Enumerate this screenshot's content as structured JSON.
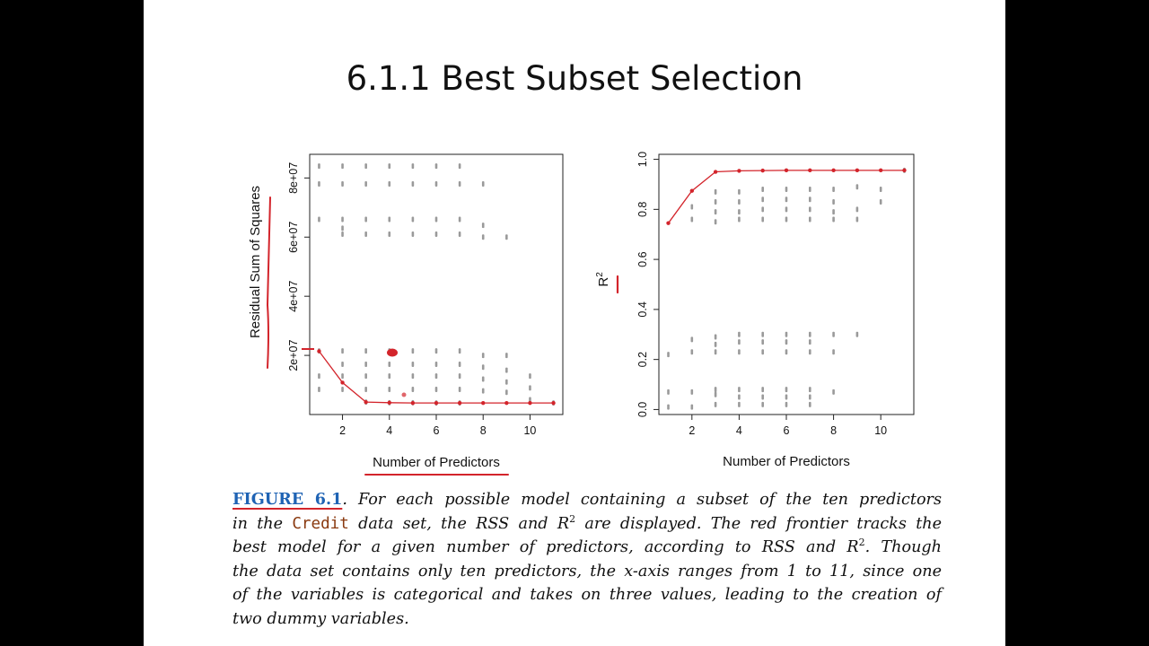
{
  "slide": {
    "title": "6.1.1 Best Subset Selection"
  },
  "colors": {
    "frontier": "#d3242b",
    "points": "#9a9a9a",
    "figure_label": "#1f63b4",
    "code_word": "#8a3a10"
  },
  "caption": {
    "figure_label": "FIGURE 6.1",
    "line1_rest": ". For each possible model containing a subset of the ten predictors",
    "line2_a": "in the ",
    "line2_code": "Credit",
    "line2_b": " data set, the RSS and R",
    "line2_sup": "2",
    "line2_c": " are displayed. The red frontier tracks the",
    "line3_a": "best model for a given number of predictors, according to RSS and R",
    "line3_sup": "2",
    "line3_b": ". Though",
    "line4": "the data set contains only ten predictors, the x-axis ranges from 1 to 11, since one",
    "line5": "of the variables is categorical and takes on three values, leading to the creation of",
    "line6": "two dummy variables."
  },
  "chart_data": [
    {
      "type": "scatter",
      "title": "",
      "xlabel": "Number of Predictors",
      "ylabel": "Residual Sum of Squares",
      "xlim": [
        0.6,
        11.4
      ],
      "ylim": [
        0,
        88000000
      ],
      "x_ticks": [
        2,
        4,
        6,
        8,
        10
      ],
      "x_tick_labels": [
        "2",
        "4",
        "6",
        "8",
        "10"
      ],
      "y_ticks": [
        20000000,
        40000000,
        60000000,
        80000000
      ],
      "y_tick_labels": [
        "2e+07",
        "4e+07",
        "6e+07",
        "8e+07"
      ],
      "grid": false,
      "frontier": {
        "x": [
          1,
          2,
          3,
          4,
          5,
          6,
          7,
          8,
          9,
          10,
          11
        ],
        "y": [
          21400000,
          10800000,
          4200000,
          4000000,
          3900000,
          3900000,
          3900000,
          3900000,
          3900000,
          3900000,
          3900000
        ]
      },
      "point_columns": [
        {
          "x": 1,
          "y": [
            84000000,
            78000000,
            66000000,
            21500000,
            13000000,
            8500000
          ]
        },
        {
          "x": 2,
          "y": [
            84000000,
            78000000,
            66000000,
            63000000,
            61000000,
            21500000,
            17000000,
            13000000,
            8500000
          ]
        },
        {
          "x": 3,
          "y": [
            84000000,
            78000000,
            66000000,
            61000000,
            21500000,
            17000000,
            13000000,
            8500000,
            4200000
          ]
        },
        {
          "x": 4,
          "y": [
            84000000,
            78000000,
            66000000,
            61000000,
            21500000,
            17000000,
            13000000,
            8500000,
            4000000
          ]
        },
        {
          "x": 5,
          "y": [
            84000000,
            78000000,
            66000000,
            61000000,
            21500000,
            17000000,
            13000000,
            8500000,
            4000000
          ]
        },
        {
          "x": 6,
          "y": [
            84000000,
            78000000,
            66000000,
            61000000,
            21500000,
            17000000,
            13000000,
            8500000,
            3900000
          ]
        },
        {
          "x": 7,
          "y": [
            84000000,
            78000000,
            66000000,
            61000000,
            21500000,
            17000000,
            13000000,
            8500000,
            3900000
          ]
        },
        {
          "x": 8,
          "y": [
            78000000,
            64000000,
            60000000,
            20000000,
            16000000,
            12000000,
            8000000
          ]
        },
        {
          "x": 9,
          "y": [
            60000000,
            20000000,
            15000000,
            11000000,
            7500000
          ]
        },
        {
          "x": 10,
          "y": [
            13000000,
            9000000,
            5000000
          ]
        },
        {
          "x": 11,
          "y": [
            3900000
          ]
        }
      ]
    },
    {
      "type": "scatter",
      "title": "",
      "xlabel": "Number of Predictors",
      "ylabel": "R2",
      "xlim": [
        0.6,
        11.4
      ],
      "ylim": [
        -0.02,
        1.02
      ],
      "x_ticks": [
        2,
        4,
        6,
        8,
        10
      ],
      "x_tick_labels": [
        "2",
        "4",
        "6",
        "8",
        "10"
      ],
      "y_ticks": [
        0.0,
        0.2,
        0.4,
        0.6,
        0.8,
        1.0
      ],
      "y_tick_labels": [
        "0.0",
        "0.2",
        "0.4",
        "0.6",
        "0.8",
        "1.0"
      ],
      "grid": false,
      "frontier": {
        "x": [
          1,
          2,
          3,
          4,
          5,
          6,
          7,
          8,
          9,
          10,
          11
        ],
        "y": [
          0.745,
          0.874,
          0.95,
          0.954,
          0.955,
          0.956,
          0.956,
          0.956,
          0.956,
          0.956,
          0.956
        ]
      },
      "point_columns": [
        {
          "x": 1,
          "y": [
            0.22,
            0.07,
            0.01
          ]
        },
        {
          "x": 2,
          "y": [
            0.81,
            0.76,
            0.28,
            0.23,
            0.07,
            0.01
          ]
        },
        {
          "x": 3,
          "y": [
            0.87,
            0.83,
            0.79,
            0.75,
            0.29,
            0.26,
            0.23,
            0.08,
            0.06,
            0.02
          ]
        },
        {
          "x": 4,
          "y": [
            0.87,
            0.83,
            0.79,
            0.76,
            0.3,
            0.27,
            0.23,
            0.08,
            0.05,
            0.02
          ]
        },
        {
          "x": 5,
          "y": [
            0.88,
            0.84,
            0.8,
            0.76,
            0.3,
            0.27,
            0.23,
            0.08,
            0.05,
            0.02
          ]
        },
        {
          "x": 6,
          "y": [
            0.88,
            0.84,
            0.8,
            0.76,
            0.3,
            0.27,
            0.23,
            0.08,
            0.05,
            0.02
          ]
        },
        {
          "x": 7,
          "y": [
            0.88,
            0.84,
            0.8,
            0.76,
            0.3,
            0.27,
            0.23,
            0.08,
            0.05,
            0.02
          ]
        },
        {
          "x": 8,
          "y": [
            0.88,
            0.83,
            0.79,
            0.76,
            0.3,
            0.23,
            0.07
          ]
        },
        {
          "x": 9,
          "y": [
            0.89,
            0.8,
            0.76,
            0.3
          ]
        },
        {
          "x": 10,
          "y": [
            0.88,
            0.83
          ]
        },
        {
          "x": 11,
          "y": [
            0.956
          ]
        }
      ]
    }
  ]
}
